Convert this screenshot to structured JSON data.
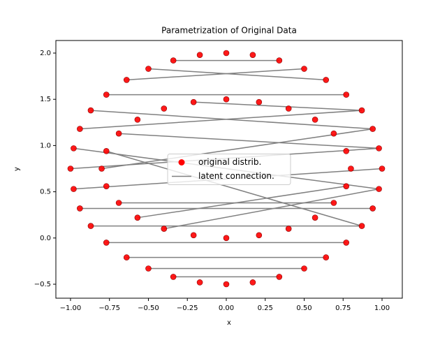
{
  "chart_data": {
    "type": "scatter",
    "title": "Parametrization of Original Data",
    "xlabel": "x",
    "ylabel": "y",
    "xlim": [
      -1.094,
      1.13
    ],
    "ylim": [
      -0.651,
      2.136
    ],
    "xticks": [
      {
        "value": -1,
        "label": "−1.00"
      },
      {
        "value": -0.75,
        "label": "−0.75"
      },
      {
        "value": -0.5,
        "label": "−0.50"
      },
      {
        "value": -0.25,
        "label": "−0.25"
      },
      {
        "value": 0,
        "label": "0.00"
      },
      {
        "value": 0.25,
        "label": "0.25"
      },
      {
        "value": 0.5,
        "label": "0.50"
      },
      {
        "value": 0.75,
        "label": "0.75"
      },
      {
        "value": 1,
        "label": "1.00"
      }
    ],
    "yticks": [
      {
        "value": -0.5,
        "label": "−0.5"
      },
      {
        "value": 0,
        "label": "0.0"
      },
      {
        "value": 0.5,
        "label": "0.5"
      },
      {
        "value": 1,
        "label": "1.0"
      },
      {
        "value": 1.5,
        "label": "1.5"
      },
      {
        "value": 2,
        "label": "2.0"
      }
    ],
    "legend": "center",
    "series": [
      {
        "name": "original distrib.",
        "color": "red",
        "x": [
          1.0,
          0.98,
          0.94,
          0.87,
          0.77,
          0.64,
          0.5,
          0.34,
          0.17,
          0.0,
          -0.17,
          -0.34,
          -0.5,
          -0.64,
          -0.77,
          -0.87,
          -0.94,
          -0.98,
          -1.0,
          -0.98,
          -0.94,
          -0.87,
          -0.77,
          -0.64,
          -0.5,
          -0.34,
          -0.17,
          0.0,
          0.17,
          0.34,
          0.5,
          0.64,
          0.77,
          0.87,
          0.94,
          0.98,
          0.8,
          0.77,
          0.69,
          0.57,
          0.4,
          0.21,
          0.0,
          -0.21,
          -0.4,
          -0.57,
          -0.69,
          -0.77,
          -0.8,
          -0.77,
          -0.69,
          -0.57,
          -0.4,
          -0.21,
          0.0,
          0.21,
          0.4,
          0.57,
          0.69,
          0.77
        ],
        "y": [
          0.75,
          0.97,
          1.18,
          1.38,
          1.55,
          1.71,
          1.83,
          1.92,
          1.98,
          2.0,
          1.98,
          1.92,
          1.83,
          1.71,
          1.55,
          1.38,
          1.18,
          0.97,
          0.75,
          0.53,
          0.32,
          0.13,
          -0.05,
          -0.21,
          -0.33,
          -0.42,
          -0.48,
          -0.5,
          -0.48,
          -0.42,
          -0.33,
          -0.21,
          -0.05,
          0.13,
          0.32,
          0.53,
          0.75,
          0.94,
          1.13,
          1.28,
          1.4,
          1.47,
          1.5,
          1.47,
          1.4,
          1.28,
          1.13,
          0.94,
          0.75,
          0.56,
          0.38,
          0.22,
          0.1,
          0.03,
          0.0,
          0.03,
          0.1,
          0.22,
          0.38,
          0.56
        ]
      },
      {
        "name": "latent connection.",
        "color": "gray",
        "x": [
          -0.98,
          0.98,
          -0.94,
          0.87,
          -0.87,
          0.94,
          -0.77,
          0.77,
          -0.64,
          0.5,
          -0.5,
          0.64,
          -0.34,
          0.34,
          -1.0,
          0.98,
          -0.98,
          1.0,
          -0.94,
          0.94,
          -0.87,
          0.87,
          -0.77,
          0.77,
          -0.64,
          0.64,
          -0.5,
          0.5,
          -0.34,
          0.34,
          -0.77,
          0.87,
          -0.69,
          0.98,
          -0.8,
          0.94,
          -0.57,
          0.77,
          -0.4,
          0.98,
          -0.21,
          0.87,
          -0.69,
          0.69
        ],
        "y": [
          0.97,
          0.53,
          1.18,
          1.38,
          1.38,
          1.18,
          1.55,
          1.55,
          1.71,
          1.83,
          1.83,
          1.71,
          1.92,
          1.92,
          0.75,
          0.97,
          0.53,
          0.75,
          0.32,
          0.32,
          0.13,
          0.13,
          -0.05,
          -0.05,
          -0.21,
          -0.21,
          -0.33,
          -0.33,
          -0.42,
          -0.42,
          0.94,
          0.13,
          1.13,
          0.97,
          0.75,
          1.18,
          0.22,
          0.56,
          0.1,
          0.53,
          1.47,
          1.38,
          0.38,
          0.38
        ]
      }
    ]
  }
}
